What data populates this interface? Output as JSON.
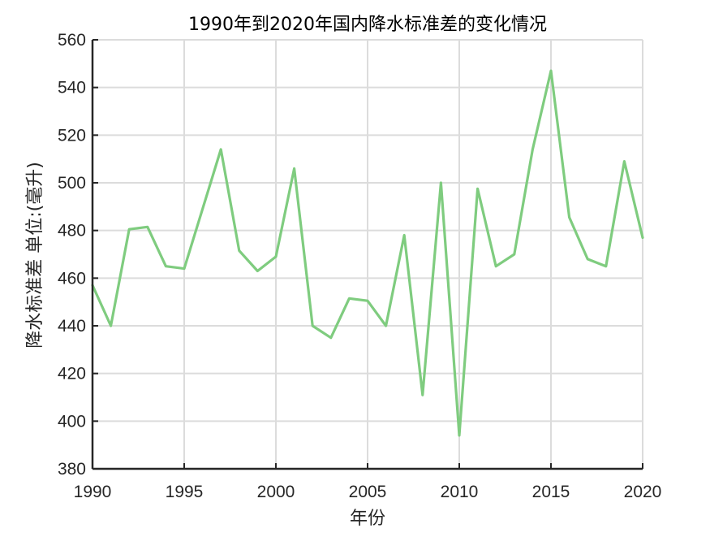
{
  "chart_data": {
    "type": "line",
    "title": "1990年到2020年国内降水标准差的变化情况",
    "xlabel": "年份",
    "ylabel": "降水标准差 单位:(毫升)",
    "xlim": [
      1990,
      2020
    ],
    "ylim": [
      380,
      560
    ],
    "xticks": [
      1990,
      1995,
      2000,
      2005,
      2010,
      2015,
      2020
    ],
    "yticks": [
      380,
      400,
      420,
      440,
      460,
      480,
      500,
      520,
      540,
      560
    ],
    "grid": true,
    "line_color": "#7fcc7f",
    "series": [
      {
        "x": [
          1990,
          1991,
          1992,
          1993,
          1994,
          1995,
          1996,
          1997,
          1998,
          1999,
          2000,
          2001,
          2002,
          2003,
          2004,
          2005,
          2006,
          2007,
          2008,
          2009,
          2010,
          2011,
          2012,
          2013,
          2014,
          2015,
          2016,
          2017,
          2018,
          2019,
          2020
        ],
        "values": [
          457,
          440,
          480.5,
          481.5,
          465,
          464,
          489,
          514,
          471.5,
          463,
          469,
          506,
          440,
          435,
          451.5,
          450.5,
          440,
          478,
          411,
          500,
          394,
          497.5,
          465,
          470,
          514,
          547,
          485.5,
          468,
          465,
          509,
          477
        ]
      }
    ]
  }
}
